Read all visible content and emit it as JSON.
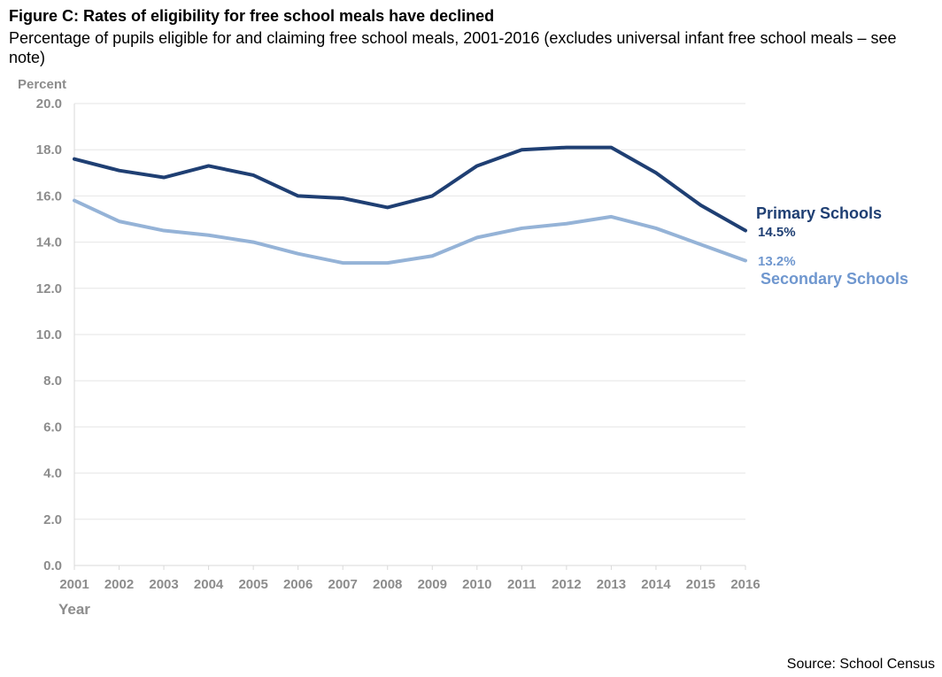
{
  "header": {
    "title": "Figure C: Rates of eligibility for free school meals have declined",
    "subtitle": "Percentage of pupils eligible for and claiming free school meals, 2001-2016 (excludes universal infant free school meals – see note)"
  },
  "footer": {
    "source": "Source: School Census"
  },
  "chart_data": {
    "type": "line",
    "title": "Figure C: Rates of eligibility for free school meals have declined",
    "subtitle": "Percentage of pupils eligible for and claiming free school meals, 2001-2016 (excludes universal infant free school meals – see note)",
    "xlabel": "Year",
    "ylabel": "Percent",
    "ylim": [
      0,
      20
    ],
    "ytick_labels": [
      "0.0",
      "2.0",
      "4.0",
      "6.0",
      "8.0",
      "10.0",
      "12.0",
      "14.0",
      "16.0",
      "18.0",
      "20.0"
    ],
    "grid": true,
    "categories": [
      "2001",
      "2002",
      "2003",
      "2004",
      "2005",
      "2006",
      "2007",
      "2008",
      "2009",
      "2010",
      "2011",
      "2012",
      "2013",
      "2014",
      "2015",
      "2016"
    ],
    "series": [
      {
        "name": "Primary Schools",
        "end_label": "14.5%",
        "color": "#1f3f73",
        "values": [
          17.6,
          17.1,
          16.8,
          17.3,
          16.9,
          16.0,
          15.9,
          15.5,
          16.0,
          17.3,
          18.0,
          18.1,
          18.1,
          17.0,
          15.6,
          14.5
        ]
      },
      {
        "name": "Secondary Schools",
        "end_label": "13.2%",
        "color": "#95b3d7",
        "label_color": "#6f97cf",
        "values": [
          15.8,
          14.9,
          14.5,
          14.3,
          14.0,
          13.5,
          13.1,
          13.1,
          13.4,
          14.2,
          14.6,
          14.8,
          15.1,
          14.6,
          13.9,
          13.2
        ]
      }
    ]
  }
}
